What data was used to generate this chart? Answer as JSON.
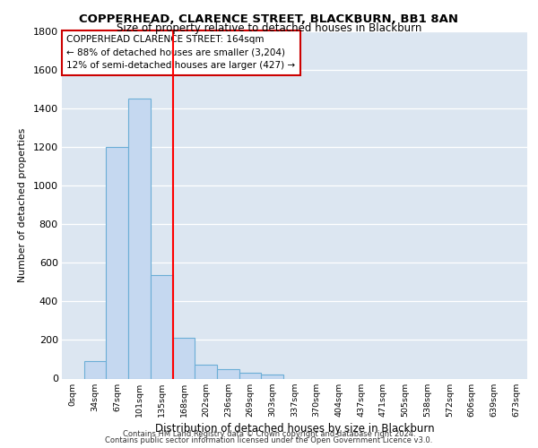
{
  "title1": "COPPERHEAD, CLARENCE STREET, BLACKBURN, BB1 8AN",
  "title2": "Size of property relative to detached houses in Blackburn",
  "xlabel": "Distribution of detached houses by size in Blackburn",
  "ylabel": "Number of detached properties",
  "footnote1": "Contains HM Land Registry data © Crown copyright and database right 2024.",
  "footnote2": "Contains public sector information licensed under the Open Government Licence v3.0.",
  "categories": [
    "0sqm",
    "34sqm",
    "67sqm",
    "101sqm",
    "135sqm",
    "168sqm",
    "202sqm",
    "236sqm",
    "269sqm",
    "303sqm",
    "337sqm",
    "370sqm",
    "404sqm",
    "437sqm",
    "471sqm",
    "505sqm",
    "538sqm",
    "572sqm",
    "606sqm",
    "639sqm",
    "673sqm"
  ],
  "values": [
    0,
    90,
    1200,
    1450,
    535,
    210,
    70,
    50,
    30,
    20,
    0,
    0,
    0,
    0,
    0,
    0,
    0,
    0,
    0,
    0,
    0
  ],
  "bar_color": "#c5d8f0",
  "bar_edge_color": "#6baed6",
  "subject_line_color": "#ff0000",
  "annotation_text": "COPPERHEAD CLARENCE STREET: 164sqm\n← 88% of detached houses are smaller (3,204)\n12% of semi-detached houses are larger (427) →",
  "annotation_box_color": "#ffffff",
  "annotation_box_edge": "#cc0000",
  "ylim": [
    0,
    1800
  ],
  "yticks": [
    0,
    200,
    400,
    600,
    800,
    1000,
    1200,
    1400,
    1600,
    1800
  ],
  "bg_color": "#dce6f1",
  "grid_color": "#ffffff",
  "subject_line_index": 4.5
}
